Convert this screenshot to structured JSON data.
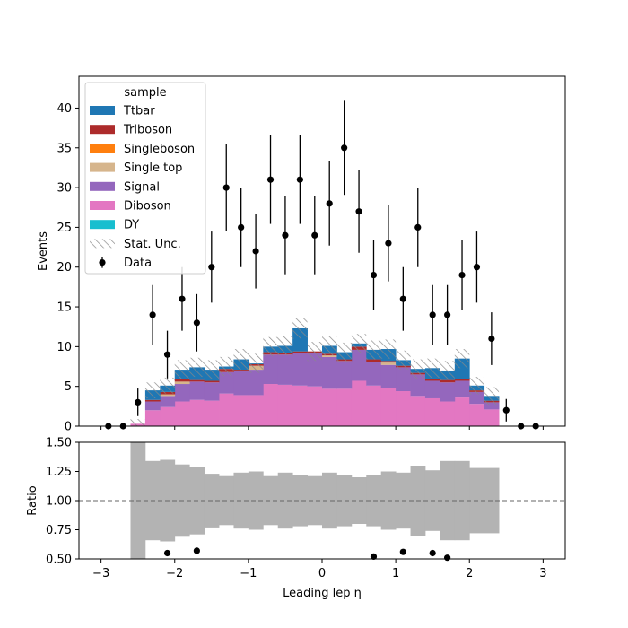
{
  "chart_data": [
    {
      "type": "bar",
      "subtype": "stacked-histogram-with-data-points",
      "xlabel": "",
      "ylabel": "Events",
      "xlim": [
        -3.3,
        3.3
      ],
      "ylim": [
        0,
        44
      ],
      "yticks": [
        0,
        5,
        10,
        15,
        20,
        25,
        30,
        35,
        40
      ],
      "xticks": [
        -3,
        -2,
        -1,
        0,
        1,
        2,
        3
      ],
      "xtick_labels": [
        "",
        "",
        "",
        "",
        "",
        "",
        ""
      ],
      "ytick_labels": [
        "0",
        "5",
        "10",
        "15",
        "20",
        "25",
        "30",
        "35",
        "40"
      ],
      "legend": {
        "title": "sample",
        "placement": "top-left",
        "entries": [
          "Ttbar",
          "Triboson",
          "Singleboson",
          "Single top",
          "Signal",
          "Diboson",
          "DY",
          "Stat. Unc.",
          "Data"
        ]
      },
      "bin_edges": [
        -2.6,
        -2.4,
        -2.2,
        -2.0,
        -1.8,
        -1.6,
        -1.4,
        -1.2,
        -1.0,
        -0.8,
        -0.6,
        -0.4,
        -0.2,
        0.0,
        0.2,
        0.4,
        0.6,
        0.8,
        1.0,
        1.2,
        1.4,
        1.6,
        1.8,
        2.0,
        2.2,
        2.4
      ],
      "series": [
        {
          "name": "Diboson",
          "color": "#e377c2",
          "values": [
            0.3,
            2.0,
            2.4,
            3.1,
            3.3,
            3.2,
            4.1,
            3.9,
            3.9,
            5.3,
            5.2,
            5.1,
            5.0,
            4.7,
            4.7,
            5.7,
            5.1,
            4.8,
            4.4,
            3.8,
            3.5,
            3.1,
            3.6,
            2.8,
            2.1
          ]
        },
        {
          "name": "Signal",
          "color": "#9467bd",
          "values": [
            0.0,
            1.1,
            1.4,
            2.2,
            2.3,
            2.3,
            2.7,
            3.0,
            3.2,
            3.7,
            3.8,
            4.1,
            4.2,
            4.0,
            3.5,
            3.9,
            3.0,
            2.9,
            3.0,
            2.7,
            2.2,
            2.4,
            2.1,
            1.5,
            0.9
          ]
        },
        {
          "name": "Single top",
          "color": "#d6b58c",
          "values": [
            0.0,
            0.0,
            0.2,
            0.3,
            0.0,
            0.0,
            0.0,
            0.0,
            0.5,
            0.0,
            0.0,
            0.0,
            0.0,
            0.2,
            0.0,
            0.0,
            0.0,
            0.3,
            0.0,
            0.0,
            0.0,
            0.0,
            0.0,
            0.0,
            0.0
          ]
        },
        {
          "name": "Singleboson",
          "color": "#ff7f0e",
          "values": [
            0.0,
            0.0,
            0.0,
            0.0,
            0.0,
            0.0,
            0.0,
            0.0,
            0.0,
            0.0,
            0.0,
            0.0,
            0.0,
            0.0,
            0.0,
            0.0,
            0.0,
            0.0,
            0.0,
            0.0,
            0.0,
            0.0,
            0.0,
            0.0,
            0.0
          ]
        },
        {
          "name": "Triboson",
          "color": "#ad2b2b",
          "values": [
            0.0,
            0.2,
            0.3,
            0.3,
            0.2,
            0.2,
            0.4,
            0.2,
            0.2,
            0.3,
            0.2,
            0.2,
            0.2,
            0.2,
            0.2,
            0.4,
            0.3,
            0.2,
            0.2,
            0.2,
            0.2,
            0.3,
            0.2,
            0.2,
            0.2
          ]
        },
        {
          "name": "Ttbar",
          "color": "#1f77b4",
          "values": [
            0.0,
            1.2,
            0.8,
            1.2,
            1.6,
            1.4,
            0.3,
            1.3,
            0.1,
            0.7,
            0.9,
            2.9,
            0.0,
            1.0,
            0.9,
            0.4,
            1.2,
            1.5,
            0.7,
            0.5,
            1.4,
            1.2,
            2.6,
            0.6,
            0.6
          ]
        },
        {
          "name": "DY",
          "color": "#17becf",
          "values": [
            0.0,
            0.0,
            0.0,
            0.0,
            0.0,
            0.0,
            0.0,
            0.0,
            0.0,
            0.0,
            0.0,
            0.0,
            0.0,
            0.0,
            0.0,
            0.0,
            0.0,
            0.0,
            0.0,
            0.0,
            0.0,
            0.0,
            0.0,
            0.0,
            0.0
          ]
        }
      ],
      "stat_unc": [
        0.6,
        1.0,
        1.0,
        1.2,
        1.2,
        1.2,
        1.2,
        1.3,
        1.2,
        1.2,
        1.2,
        1.3,
        1.2,
        1.2,
        1.2,
        1.2,
        1.2,
        1.2,
        1.2,
        1.2,
        1.2,
        1.2,
        1.2,
        1.1,
        1.1
      ],
      "data_points": {
        "name": "Data",
        "x": [
          -2.9,
          -2.7,
          -2.5,
          -2.3,
          -2.1,
          -1.9,
          -1.7,
          -1.5,
          -1.3,
          -1.1,
          -0.9,
          -0.7,
          -0.5,
          -0.3,
          -0.1,
          0.1,
          0.3,
          0.5,
          0.7,
          0.9,
          1.1,
          1.3,
          1.5,
          1.7,
          1.9,
          2.1,
          2.3,
          2.5,
          2.7,
          2.9
        ],
        "y": [
          0,
          0,
          3,
          14,
          9,
          16,
          13,
          20,
          30,
          25,
          22,
          31,
          24,
          31,
          24,
          28,
          35,
          27,
          19,
          23,
          16,
          25,
          14,
          14,
          19,
          20,
          11,
          2,
          0,
          0
        ]
      }
    },
    {
      "type": "scatter",
      "subtype": "ratio-panel",
      "xlabel": "Leading lep η",
      "ylabel": "Ratio",
      "xlim": [
        -3.3,
        3.3
      ],
      "ylim": [
        0.5,
        1.5
      ],
      "yticks": [
        0.5,
        0.75,
        1.0,
        1.25,
        1.5
      ],
      "ytick_labels": [
        "0.50",
        "0.75",
        "1.00",
        "1.25",
        "1.50"
      ],
      "xticks": [
        -3,
        -2,
        -1,
        0,
        1,
        2,
        3
      ],
      "xtick_labels": [
        "−3",
        "−2",
        "−1",
        "0",
        "1",
        "2",
        "3"
      ],
      "reference_line": 1.0,
      "band_bin_edges": [
        -2.6,
        -2.4,
        -2.2,
        -2.0,
        -1.8,
        -1.6,
        -1.4,
        -1.2,
        -1.0,
        -0.8,
        -0.6,
        -0.4,
        -0.2,
        0.0,
        0.2,
        0.4,
        0.6,
        0.8,
        1.0,
        1.2,
        1.4,
        1.6,
        1.8,
        2.0,
        2.2,
        2.4
      ],
      "band_half_width": [
        0.6,
        0.34,
        0.35,
        0.31,
        0.29,
        0.23,
        0.21,
        0.24,
        0.25,
        0.21,
        0.24,
        0.22,
        0.21,
        0.24,
        0.22,
        0.2,
        0.22,
        0.25,
        0.24,
        0.3,
        0.26,
        0.34,
        0.34,
        0.28,
        0.28
      ],
      "points": {
        "x": [
          -2.1,
          -1.7,
          0.7,
          1.1,
          1.5,
          1.7
        ],
        "y": [
          0.55,
          0.57,
          0.52,
          0.56,
          0.55,
          0.51
        ]
      }
    }
  ]
}
